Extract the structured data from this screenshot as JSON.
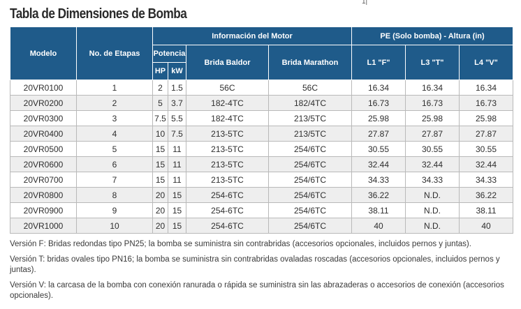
{
  "title": "Tabla de Dimensiones de Bomba",
  "corner_mark": "1|",
  "headers": {
    "modelo": "Modelo",
    "etapas": "No. de Etapas",
    "info_motor": "Información del Motor",
    "potencia": "Potencia",
    "hp": "HP",
    "kw": "kW",
    "brida_baldor": "Brida Baldor",
    "brida_marathon": "Brida Marathon",
    "pe_group": "PE (Solo bomba) - Altura (in)",
    "l1": "L1 \"F\"",
    "l3": "L3 \"T\"",
    "l4": "L4 \"V\""
  },
  "rows": [
    [
      "20VR0100",
      "1",
      "2",
      "1.5",
      "56C",
      "56C",
      "16.34",
      "16.34",
      "16.34"
    ],
    [
      "20VR0200",
      "2",
      "5",
      "3.7",
      "182-4TC",
      "182/4TC",
      "16.73",
      "16.73",
      "16.73"
    ],
    [
      "20VR0300",
      "3",
      "7.5",
      "5.5",
      "182-4TC",
      "213/5TC",
      "25.98",
      "25.98",
      "25.98"
    ],
    [
      "20VR0400",
      "4",
      "10",
      "7.5",
      "213-5TC",
      "213/5TC",
      "27.87",
      "27.87",
      "27.87"
    ],
    [
      "20VR0500",
      "5",
      "15",
      "11",
      "213-5TC",
      "254/6TC",
      "30.55",
      "30.55",
      "30.55"
    ],
    [
      "20VR0600",
      "6",
      "15",
      "11",
      "213-5TC",
      "254/6TC",
      "32.44",
      "32.44",
      "32.44"
    ],
    [
      "20VR0700",
      "7",
      "15",
      "11",
      "213-5TC",
      "254/6TC",
      "34.33",
      "34.33",
      "34.33"
    ],
    [
      "20VR0800",
      "8",
      "20",
      "15",
      "254-6TC",
      "254/6TC",
      "36.22",
      "N.D.",
      "36.22"
    ],
    [
      "20VR0900",
      "9",
      "20",
      "15",
      "254-6TC",
      "254/6TC",
      "38.11",
      "N.D.",
      "38.11"
    ],
    [
      "20VR1000",
      "10",
      "20",
      "15",
      "254-6TC",
      "254/6TC",
      "40",
      "N.D.",
      "40"
    ]
  ],
  "notes": [
    "Versión F: Bridas redondas tipo PN25; la bomba se suministra sin contrabridas (accesorios opcionales, incluidos pernos y juntas).",
    "Versión T: bridas ovales tipo PN16; la bomba se suministra sin contrabridas ovaladas roscadas (accesorios opcionales, incluidos pernos y juntas).",
    "Versión V: la carcasa de la bomba con conexión ranurada o rápida se suministra sin las abrazaderas o accesorios de conexión (accesorios opcionales)."
  ],
  "colors": {
    "header_bg": "#1f5b8a",
    "header_text": "#ffffff",
    "row_alt_bg": "#eeeeee",
    "grid_line": "#b9b9b9"
  }
}
